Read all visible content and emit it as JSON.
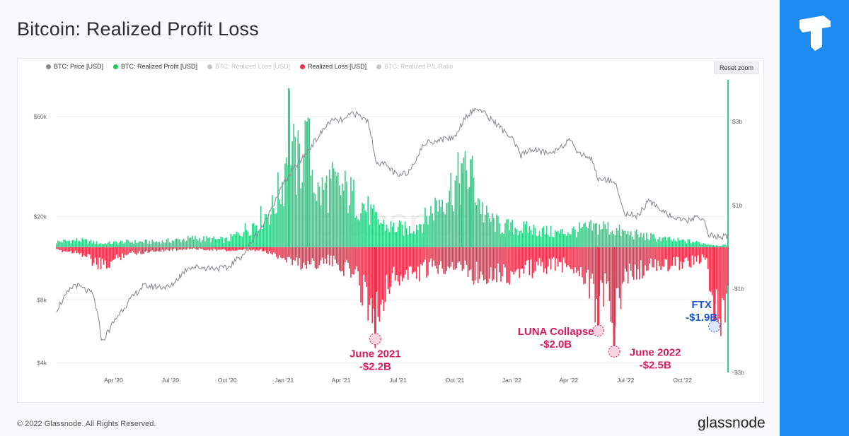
{
  "title": "Bitcoin: Realized Profit Loss",
  "footer": {
    "copyright": "© 2022 Glassnode. All Rights Reserved.",
    "brand": "glassnode"
  },
  "toolbar": {
    "reset_zoom": "Reset zoom"
  },
  "watermark": "glassnode",
  "legend": [
    {
      "label": "BTC: Price [USD]",
      "color": "#888888",
      "active": true
    },
    {
      "label": "BTC: Realized Profit [USD]",
      "color": "#22c55e",
      "active": true
    },
    {
      "label": "BTC: Realized Loss [USD]",
      "color": "#8b0000",
      "active": false
    },
    {
      "label": "Realized Loss [USD]",
      "color": "#e8344e",
      "active": true
    },
    {
      "label": "BTC: Realized P/L Ratio",
      "color": "#3b6fd8",
      "active": false
    }
  ],
  "colors": {
    "accent": "#1d8bf1",
    "profit": "#2fcf86",
    "loss": "#e8344e",
    "annotation": "#d81b60",
    "ftx": "#1a56c9",
    "price": "#8a8f94"
  },
  "chart_data": {
    "type": "bar",
    "x_ticks": [
      "Apr '20",
      "Jul '20",
      "Oct '20",
      "Jan '21",
      "Apr '21",
      "Jul '21",
      "Oct '21",
      "Jan '22",
      "Apr '22",
      "Jul '22",
      "Oct '22"
    ],
    "x_range": [
      2020.0,
      2022.95
    ],
    "y_left_ticks": [
      "$60k",
      "$20k",
      "$8k",
      "$4k"
    ],
    "y_left_values": [
      60000,
      20000,
      8000,
      4000
    ],
    "y_left_scale": "log",
    "y_right_ticks": [
      "$3b",
      "$1b",
      "-$1b",
      "-$3b"
    ],
    "y_right_values": [
      3,
      1,
      -1,
      -3
    ],
    "y_right_range": [
      -3,
      4
    ],
    "price_series": {
      "name": "BTC: Price [USD]",
      "points": [
        [
          2020.0,
          7200
        ],
        [
          2020.08,
          9500
        ],
        [
          2020.16,
          8500
        ],
        [
          2020.2,
          5000
        ],
        [
          2020.28,
          7000
        ],
        [
          2020.38,
          9300
        ],
        [
          2020.5,
          9200
        ],
        [
          2020.58,
          11500
        ],
        [
          2020.75,
          11300
        ],
        [
          2020.83,
          13500
        ],
        [
          2020.92,
          19000
        ],
        [
          2021.0,
          29000
        ],
        [
          2021.08,
          38000
        ],
        [
          2021.15,
          48000
        ],
        [
          2021.2,
          57000
        ],
        [
          2021.27,
          58000
        ],
        [
          2021.3,
          63000
        ],
        [
          2021.37,
          57000
        ],
        [
          2021.4,
          37000
        ],
        [
          2021.45,
          35000
        ],
        [
          2021.5,
          31000
        ],
        [
          2021.55,
          33000
        ],
        [
          2021.62,
          45000
        ],
        [
          2021.7,
          47000
        ],
        [
          2021.75,
          48000
        ],
        [
          2021.8,
          61000
        ],
        [
          2021.85,
          66000
        ],
        [
          2021.92,
          57000
        ],
        [
          2022.0,
          47000
        ],
        [
          2022.04,
          39000
        ],
        [
          2022.08,
          42000
        ],
        [
          2022.17,
          40000
        ],
        [
          2022.25,
          46000
        ],
        [
          2022.3,
          40000
        ],
        [
          2022.35,
          38000
        ],
        [
          2022.38,
          30000
        ],
        [
          2022.45,
          30000
        ],
        [
          2022.49,
          21000
        ],
        [
          2022.55,
          20000
        ],
        [
          2022.6,
          23500
        ],
        [
          2022.65,
          22000
        ],
        [
          2022.7,
          20000
        ],
        [
          2022.75,
          19000
        ],
        [
          2022.8,
          19500
        ],
        [
          2022.84,
          20000
        ],
        [
          2022.86,
          16500
        ],
        [
          2022.9,
          16000
        ]
      ]
    },
    "series": [
      {
        "name": "Realized Profit [USD]",
        "points": [
          [
            2020.0,
            0.15
          ],
          [
            2020.1,
            0.2
          ],
          [
            2020.2,
            0.1
          ],
          [
            2020.3,
            0.15
          ],
          [
            2020.45,
            0.15
          ],
          [
            2020.6,
            0.25
          ],
          [
            2020.75,
            0.2
          ],
          [
            2020.85,
            0.6
          ],
          [
            2020.95,
            1.1
          ],
          [
            2021.0,
            2.0
          ],
          [
            2021.02,
            3.8
          ],
          [
            2021.05,
            2.2
          ],
          [
            2021.1,
            3.0
          ],
          [
            2021.15,
            1.5
          ],
          [
            2021.2,
            1.8
          ],
          [
            2021.27,
            1.6
          ],
          [
            2021.35,
            1.2
          ],
          [
            2021.4,
            0.8
          ],
          [
            2021.45,
            0.6
          ],
          [
            2021.55,
            0.5
          ],
          [
            2021.62,
            0.8
          ],
          [
            2021.7,
            1.5
          ],
          [
            2021.78,
            2.0
          ],
          [
            2021.82,
            2.1
          ],
          [
            2021.88,
            0.9
          ],
          [
            2021.95,
            0.6
          ],
          [
            2022.1,
            0.5
          ],
          [
            2022.2,
            0.4
          ],
          [
            2022.3,
            0.5
          ],
          [
            2022.4,
            0.6
          ],
          [
            2022.5,
            0.4
          ],
          [
            2022.6,
            0.3
          ],
          [
            2022.7,
            0.2
          ],
          [
            2022.8,
            0.15
          ],
          [
            2022.9,
            0.05
          ]
        ]
      },
      {
        "name": "Realized Loss [USD]",
        "points": [
          [
            2020.0,
            -0.1
          ],
          [
            2020.1,
            -0.15
          ],
          [
            2020.2,
            -0.6
          ],
          [
            2020.3,
            -0.2
          ],
          [
            2020.45,
            -0.1
          ],
          [
            2020.6,
            -0.05
          ],
          [
            2020.75,
            -0.1
          ],
          [
            2020.9,
            -0.1
          ],
          [
            2021.0,
            -0.3
          ],
          [
            2021.08,
            -0.5
          ],
          [
            2021.2,
            -0.4
          ],
          [
            2021.3,
            -0.7
          ],
          [
            2021.38,
            -1.6
          ],
          [
            2021.4,
            -2.2
          ],
          [
            2021.45,
            -1.0
          ],
          [
            2021.55,
            -0.8
          ],
          [
            2021.65,
            -0.6
          ],
          [
            2021.75,
            -0.5
          ],
          [
            2021.85,
            -0.8
          ],
          [
            2021.92,
            -0.7
          ],
          [
            2022.0,
            -0.8
          ],
          [
            2022.1,
            -0.6
          ],
          [
            2022.2,
            -0.5
          ],
          [
            2022.3,
            -0.6
          ],
          [
            2022.36,
            -1.3
          ],
          [
            2022.38,
            -2.0
          ],
          [
            2022.42,
            -0.9
          ],
          [
            2022.45,
            -2.5
          ],
          [
            2022.5,
            -0.8
          ],
          [
            2022.6,
            -0.6
          ],
          [
            2022.7,
            -0.5
          ],
          [
            2022.8,
            -0.4
          ],
          [
            2022.85,
            -0.3
          ],
          [
            2022.89,
            -1.9
          ]
        ]
      }
    ],
    "annotations": [
      {
        "label": "June 2021",
        "value": "-$2.2B",
        "x": 2021.4,
        "y": -2.2,
        "color": "#d81b60"
      },
      {
        "label": "LUNA Collapse",
        "value": "-$2.0B",
        "x": 2022.38,
        "y": -2.0,
        "color": "#d81b60"
      },
      {
        "label": "June 2022",
        "value": "-$2.5B",
        "x": 2022.45,
        "y": -2.5,
        "color": "#d81b60"
      },
      {
        "label": "FTX",
        "value": "-$1.9B",
        "x": 2022.89,
        "y": -1.9,
        "color": "#1a56c9"
      }
    ]
  }
}
